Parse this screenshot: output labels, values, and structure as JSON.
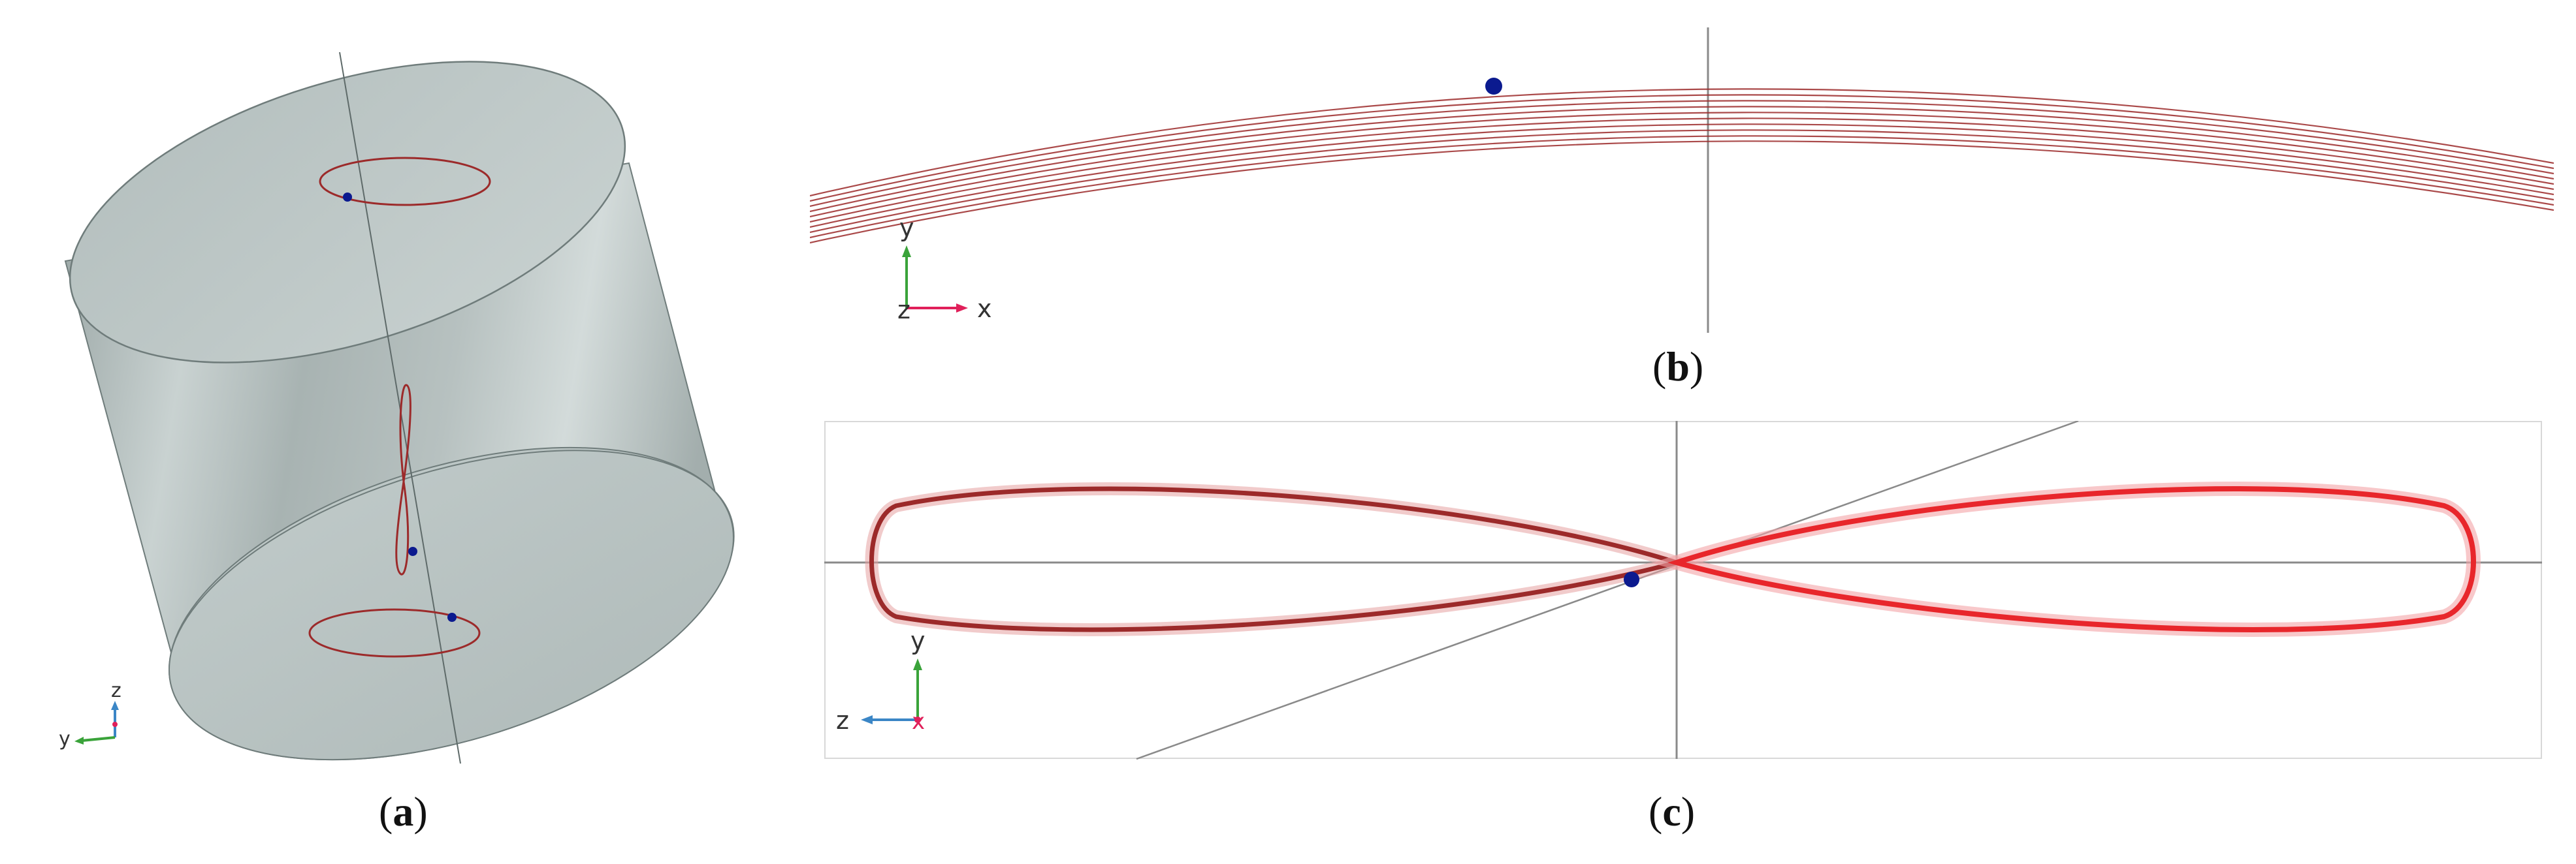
{
  "panels": [
    {
      "id": "a",
      "caption": {
        "open": "(",
        "letter": "a",
        "close": ")"
      },
      "triad": {
        "z": "z",
        "y": "y"
      }
    },
    {
      "id": "b",
      "caption": {
        "open": "(",
        "letter": "b",
        "close": ")"
      },
      "triad": {
        "y": "y",
        "z": "z",
        "x": "x"
      }
    },
    {
      "id": "c",
      "caption": {
        "open": "(",
        "letter": "c",
        "close": ")"
      },
      "triad": {
        "y": "y",
        "z": "z",
        "x": "x"
      }
    }
  ],
  "colors": {
    "cylinder": "#b9c4c3",
    "cylinder_dark": "#97a3a2",
    "trajectory_dark": "#9c2a2a",
    "trajectory_bright": "#e8262b",
    "marker": "#0b1a8f",
    "axis_line": "#8a8a8a",
    "triad_x": "#e0205a",
    "triad_y": "#3aa33a",
    "triad_z": "#3b86c6"
  }
}
